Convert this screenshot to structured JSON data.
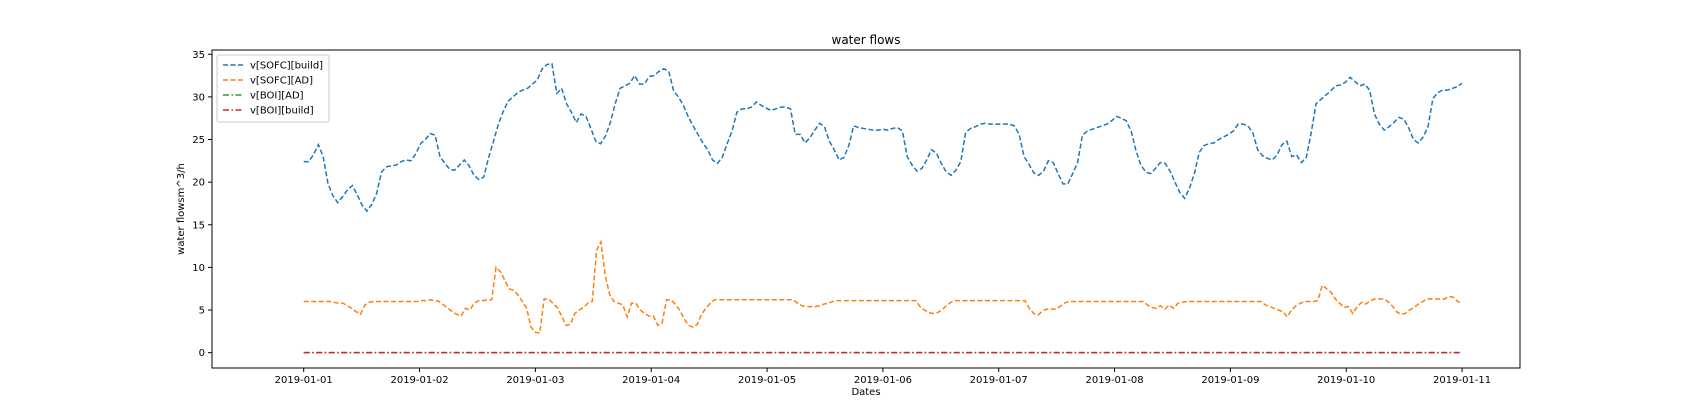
{
  "chart_data": {
    "type": "line",
    "title": "water flows",
    "xlabel": "Dates",
    "ylabel": "water flowsm^3/h",
    "x_start": "2019-01-01",
    "x_end": "2019-01-11",
    "xlim": [
      "2018-12-31T05:00",
      "2019-01-11T12:00"
    ],
    "ylim": [
      -1.8,
      35.5
    ],
    "x_ticks": [
      "2019-01-01",
      "2019-01-02",
      "2019-01-03",
      "2019-01-04",
      "2019-01-05",
      "2019-01-06",
      "2019-01-07",
      "2019-01-08",
      "2019-01-09",
      "2019-01-10",
      "2019-01-11"
    ],
    "y_ticks": [
      0,
      5,
      10,
      15,
      20,
      25,
      30,
      35
    ],
    "grid": false,
    "legend_position": "top-left",
    "series": [
      {
        "name": "v[SOFC][build]",
        "color": "#1f77b4",
        "style": "dashed",
        "values": [
          22.4,
          22.4,
          23.2,
          24.4,
          23.0,
          19.8,
          18.4,
          17.6,
          18.3,
          19.1,
          19.6,
          18.5,
          17.3,
          16.6,
          17.4,
          18.7,
          21.2,
          21.8,
          21.9,
          22.0,
          22.4,
          22.6,
          22.5,
          23.3,
          24.5,
          25.0,
          25.7,
          25.5,
          23.0,
          22.2,
          21.5,
          21.4,
          22.0,
          22.6,
          21.9,
          20.8,
          20.3,
          20.6,
          22.9,
          24.8,
          26.8,
          28.3,
          29.5,
          30.0,
          30.5,
          30.8,
          31.0,
          31.5,
          32.0,
          33.3,
          33.8,
          33.9,
          30.4,
          31.0,
          29.2,
          28.2,
          27.0,
          28.0,
          27.7,
          26.3,
          24.8,
          24.5,
          25.4,
          27.0,
          29.2,
          31.0,
          31.3,
          31.6,
          32.5,
          31.5,
          31.5,
          32.4,
          32.5,
          33.0,
          33.3,
          33.0,
          30.7,
          30.0,
          29.0,
          27.7,
          26.6,
          25.6,
          24.6,
          23.8,
          22.6,
          22.2,
          22.9,
          24.5,
          26.0,
          28.2,
          28.6,
          28.6,
          28.8,
          29.4,
          29.0,
          28.7,
          28.4,
          28.6,
          28.8,
          28.8,
          28.6,
          25.6,
          25.6,
          24.6,
          25.2,
          26.1,
          26.9,
          26.5,
          24.8,
          23.8,
          22.6,
          22.9,
          24.3,
          26.6,
          26.4,
          26.3,
          26.2,
          26.1,
          26.1,
          26.2,
          26.1,
          26.3,
          26.4,
          26.0,
          23.0,
          22.0,
          21.3,
          21.6,
          22.6,
          23.8,
          23.4,
          22.2,
          21.2,
          20.8,
          21.4,
          22.4,
          25.8,
          26.3,
          26.5,
          26.8,
          26.9,
          26.8,
          26.8,
          26.8,
          26.8,
          26.8,
          26.6,
          25.6,
          23.0,
          22.1,
          21.1,
          20.8,
          21.3,
          22.5,
          22.3,
          21.0,
          19.8,
          19.8,
          21.0,
          22.3,
          25.5,
          26.0,
          26.2,
          26.4,
          26.6,
          26.8,
          27.2,
          27.7,
          27.5,
          27.2,
          26.0,
          23.7,
          22.0,
          21.2,
          21.0,
          21.6,
          22.3,
          22.2,
          21.3,
          20.0,
          18.8,
          18.1,
          19.3,
          21.0,
          23.5,
          24.3,
          24.5,
          24.6,
          25.0,
          25.3,
          25.6,
          26.0,
          26.8,
          26.8,
          26.6,
          25.8,
          23.8,
          23.1,
          22.8,
          22.6,
          23.2,
          24.4,
          24.8,
          23.0,
          23.2,
          22.3,
          22.9,
          25.8,
          29.2,
          29.7,
          30.2,
          30.7,
          31.3,
          31.4,
          31.7,
          32.3,
          31.8,
          31.3,
          31.5,
          30.8,
          28.0,
          26.8,
          26.1,
          26.5,
          27.0,
          27.6,
          27.4,
          26.4,
          25.0,
          24.6,
          25.3,
          26.5,
          29.8,
          30.5,
          30.8,
          30.8,
          31.0,
          31.2,
          31.6
        ]
      },
      {
        "name": "v[SOFC][AD]",
        "color": "#ff7f0e",
        "style": "dashed",
        "values": [
          6.0,
          6.0,
          6.0,
          6.0,
          6.0,
          6.0,
          6.0,
          5.9,
          5.8,
          5.8,
          5.5,
          5.2,
          4.8,
          4.5,
          5.6,
          5.9,
          6.0,
          6.0,
          6.0,
          6.0,
          6.0,
          6.0,
          6.0,
          6.0,
          6.0,
          6.0,
          6.0,
          6.1,
          6.1,
          6.2,
          6.1,
          6.0,
          5.6,
          5.2,
          4.8,
          4.5,
          4.3,
          5.2,
          5.0,
          5.8,
          6.1,
          6.1,
          6.2,
          6.2,
          10.0,
          9.5,
          8.5,
          7.5,
          7.3,
          6.8,
          6.0,
          5.2,
          3.0,
          2.4,
          2.3,
          6.3,
          6.3,
          5.8,
          5.3,
          4.3,
          3.2,
          3.3,
          4.6,
          5.0,
          5.3,
          5.8,
          6.0,
          12.0,
          13.0,
          9.0,
          6.8,
          6.0,
          5.8,
          5.6,
          4.2,
          5.8,
          5.8,
          5.0,
          4.6,
          4.3,
          4.3,
          3.2,
          3.5,
          6.2,
          6.2,
          5.7,
          5.0,
          4.0,
          3.2,
          3.0,
          3.3,
          4.5,
          5.2,
          5.8,
          6.2,
          6.2,
          6.2,
          6.2,
          6.2,
          6.2,
          6.2,
          6.2,
          6.2,
          6.2,
          6.2,
          6.2,
          6.2,
          6.2,
          6.2,
          6.2,
          6.2,
          6.2,
          6.2,
          5.8,
          5.5,
          5.4,
          5.4,
          5.4,
          5.5,
          5.7,
          5.8,
          6.0,
          6.1,
          6.1,
          6.1,
          6.1,
          6.1,
          6.1,
          6.1,
          6.1,
          6.1,
          6.1,
          6.1,
          6.1,
          6.1,
          6.1,
          6.1,
          6.1,
          6.1,
          6.1,
          6.1,
          5.4,
          5.0,
          4.7,
          4.6,
          4.7,
          5.0,
          5.5,
          5.9,
          6.1,
          6.1,
          6.1,
          6.1,
          6.1,
          6.1,
          6.1,
          6.1,
          6.1,
          6.1,
          6.1,
          6.1,
          6.1,
          6.1,
          6.1,
          6.1,
          6.1,
          5.2,
          4.6,
          4.4,
          4.9,
          5.1,
          5.1,
          5.1,
          5.4,
          5.8,
          6.0,
          6.0,
          6.0,
          6.0,
          6.0,
          6.0,
          6.0,
          6.0,
          6.0,
          6.0,
          6.0,
          6.0,
          6.0,
          6.0,
          6.0,
          6.0,
          6.0,
          6.0,
          5.6,
          5.3,
          5.2,
          5.5,
          5.1,
          5.6,
          5.2,
          5.8,
          5.9,
          6.0,
          6.0,
          6.0,
          6.0,
          6.0,
          6.0,
          6.0,
          6.0,
          6.0,
          6.0,
          6.0,
          6.0,
          6.0,
          6.0,
          6.0,
          6.0,
          6.0,
          6.0,
          5.6,
          5.4,
          5.2,
          5.0,
          4.8,
          4.2,
          5.0,
          5.5,
          5.8,
          6.0,
          6.0,
          6.0,
          6.1,
          7.9,
          7.5,
          7.1,
          6.3,
          5.8,
          5.3,
          5.4,
          4.6,
          5.4,
          5.9,
          5.7,
          6.1,
          6.3,
          6.3,
          6.3,
          6.0,
          5.5,
          4.8,
          4.5,
          4.6,
          5.0,
          5.3,
          5.7,
          6.0,
          6.3,
          6.3,
          6.3,
          6.3,
          6.3,
          6.6,
          6.5,
          6.0,
          5.8
        ]
      },
      {
        "name": "v[BOI][AD]",
        "color": "#2ca02c",
        "style": "dashdot",
        "values": [
          0,
          0
        ]
      },
      {
        "name": "v[BOI][build]",
        "color": "#d62728",
        "style": "dashdot",
        "values": [
          0,
          0
        ]
      }
    ]
  }
}
